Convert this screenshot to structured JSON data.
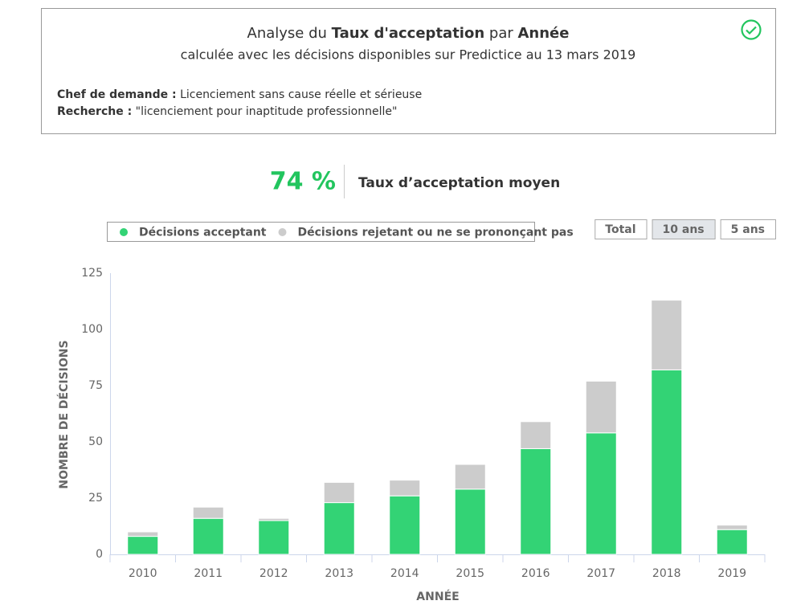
{
  "header": {
    "title_prefix": "Analyse du",
    "title_metric": "Taux d'acceptation",
    "title_by": "par",
    "title_dimension": "Année",
    "subtitle": "calculée avec les décisions disponibles sur Predictice au 13 mars 2019",
    "filters": [
      {
        "label": "Chef de demande :",
        "value": "Licenciement sans cause réelle et sérieuse"
      },
      {
        "label": "Recherche :",
        "value": "\"licenciement pour inaptitude professionnelle\""
      }
    ]
  },
  "kpi": {
    "value": "74 %",
    "label": "Taux d’acceptation moyen"
  },
  "period_buttons": [
    {
      "label": "Total",
      "active": false
    },
    {
      "label": "10 ans",
      "active": true
    },
    {
      "label": "5 ans",
      "active": false
    }
  ],
  "chart_data": {
    "type": "stacked-bar",
    "x_label": "ANNÉE",
    "y_label": "NOMBRE DE DÉCISIONS",
    "categories": [
      "2010",
      "2011",
      "2012",
      "2013",
      "2014",
      "2015",
      "2016",
      "2017",
      "2018",
      "2019"
    ],
    "series": [
      {
        "name": "Décisions acceptant",
        "color": "#33d375",
        "values": [
          8,
          16,
          15,
          23,
          26,
          29,
          47,
          54,
          82,
          11
        ]
      },
      {
        "name": "Décisions rejetant ou ne se prononçant pas",
        "color": "#cccccc",
        "values": [
          2,
          5,
          1,
          9,
          7,
          11,
          12,
          23,
          31,
          2
        ]
      }
    ],
    "ylim": [
      0,
      125
    ],
    "yticks": [
      0,
      25,
      50,
      75,
      100,
      125
    ],
    "grid": false
  }
}
